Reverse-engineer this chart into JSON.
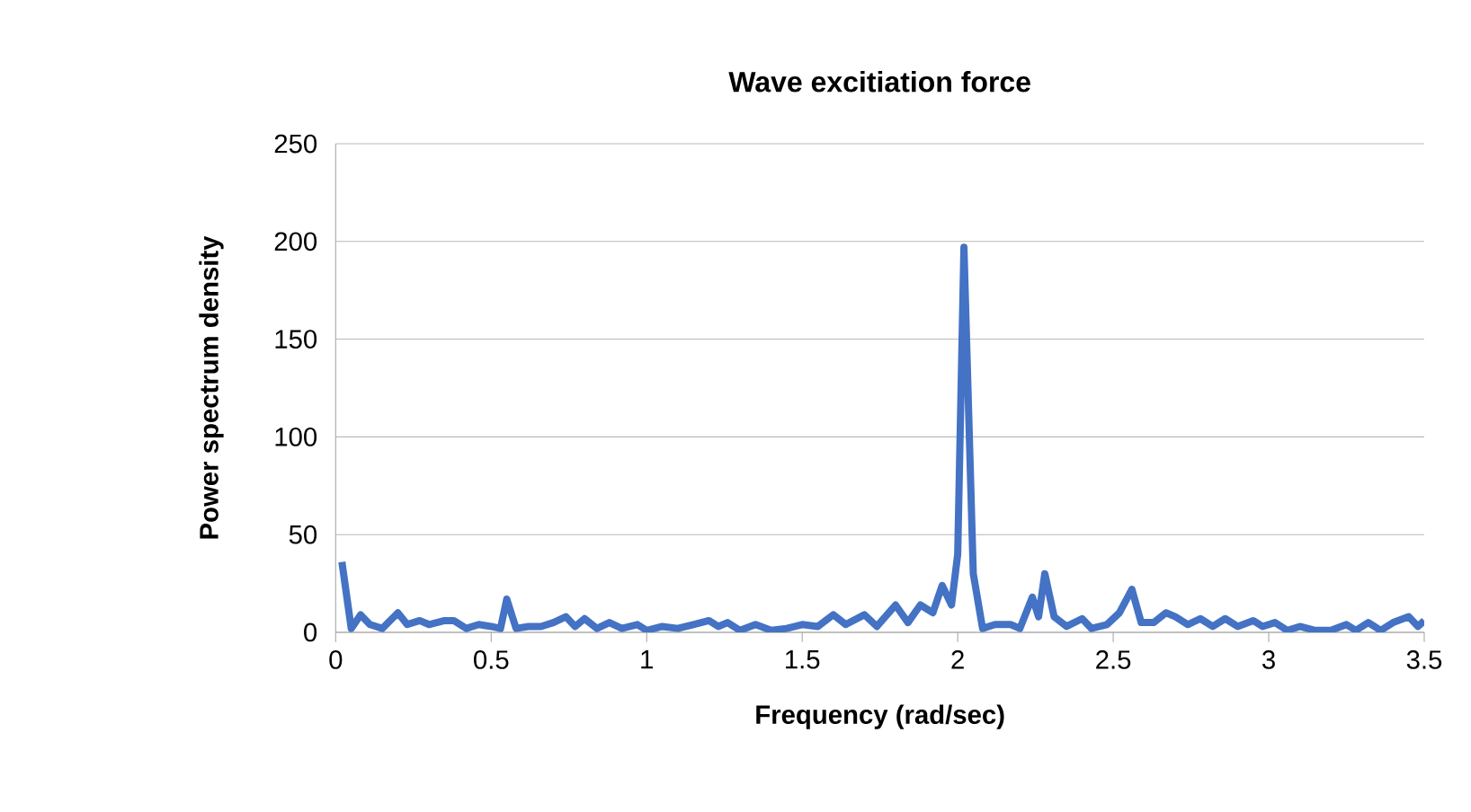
{
  "chart_data": {
    "type": "line",
    "title": "Wave excitiation force",
    "xlabel": "Frequency (rad/sec)",
    "ylabel": "Power spectrum density",
    "xlim": [
      0,
      3.5
    ],
    "xticks": [
      0,
      0.5,
      1,
      1.5,
      2,
      2.5,
      3,
      3.5
    ],
    "ylim": [
      0,
      250
    ],
    "yticks": [
      0,
      50,
      100,
      150,
      200,
      250
    ],
    "grid": "y",
    "series": [
      {
        "color": "#4472c4",
        "x": [
          0.02,
          0.05,
          0.08,
          0.11,
          0.15,
          0.2,
          0.23,
          0.27,
          0.3,
          0.35,
          0.38,
          0.42,
          0.46,
          0.5,
          0.53,
          0.55,
          0.58,
          0.62,
          0.66,
          0.7,
          0.74,
          0.77,
          0.8,
          0.84,
          0.88,
          0.92,
          0.97,
          1.0,
          1.05,
          1.1,
          1.15,
          1.2,
          1.23,
          1.26,
          1.3,
          1.35,
          1.4,
          1.45,
          1.5,
          1.55,
          1.6,
          1.64,
          1.7,
          1.74,
          1.8,
          1.84,
          1.88,
          1.92,
          1.95,
          1.98,
          2.0,
          2.02,
          2.05,
          2.08,
          2.12,
          2.17,
          2.2,
          2.24,
          2.26,
          2.28,
          2.31,
          2.35,
          2.4,
          2.43,
          2.48,
          2.52,
          2.56,
          2.59,
          2.63,
          2.67,
          2.7,
          2.74,
          2.78,
          2.82,
          2.86,
          2.9,
          2.95,
          2.98,
          3.02,
          3.06,
          3.1,
          3.15,
          3.2,
          3.25,
          3.28,
          3.32,
          3.36,
          3.4,
          3.45,
          3.48,
          3.5
        ],
        "values": [
          36,
          2,
          9,
          4,
          2,
          10,
          4,
          6,
          4,
          6,
          6,
          2,
          4,
          3,
          2,
          17,
          2,
          3,
          3,
          5,
          8,
          3,
          7,
          2,
          5,
          2,
          4,
          1,
          3,
          2,
          4,
          6,
          3,
          5,
          1,
          4,
          1,
          2,
          4,
          3,
          9,
          4,
          9,
          3,
          14,
          5,
          14,
          10,
          24,
          14,
          40,
          197,
          30,
          2,
          4,
          4,
          2,
          18,
          8,
          30,
          8,
          3,
          7,
          2,
          4,
          10,
          22,
          5,
          5,
          10,
          8,
          4,
          7,
          3,
          7,
          3,
          6,
          3,
          5,
          1,
          3,
          1,
          1,
          4,
          1,
          5,
          1,
          5,
          8,
          3,
          6
        ]
      }
    ]
  }
}
